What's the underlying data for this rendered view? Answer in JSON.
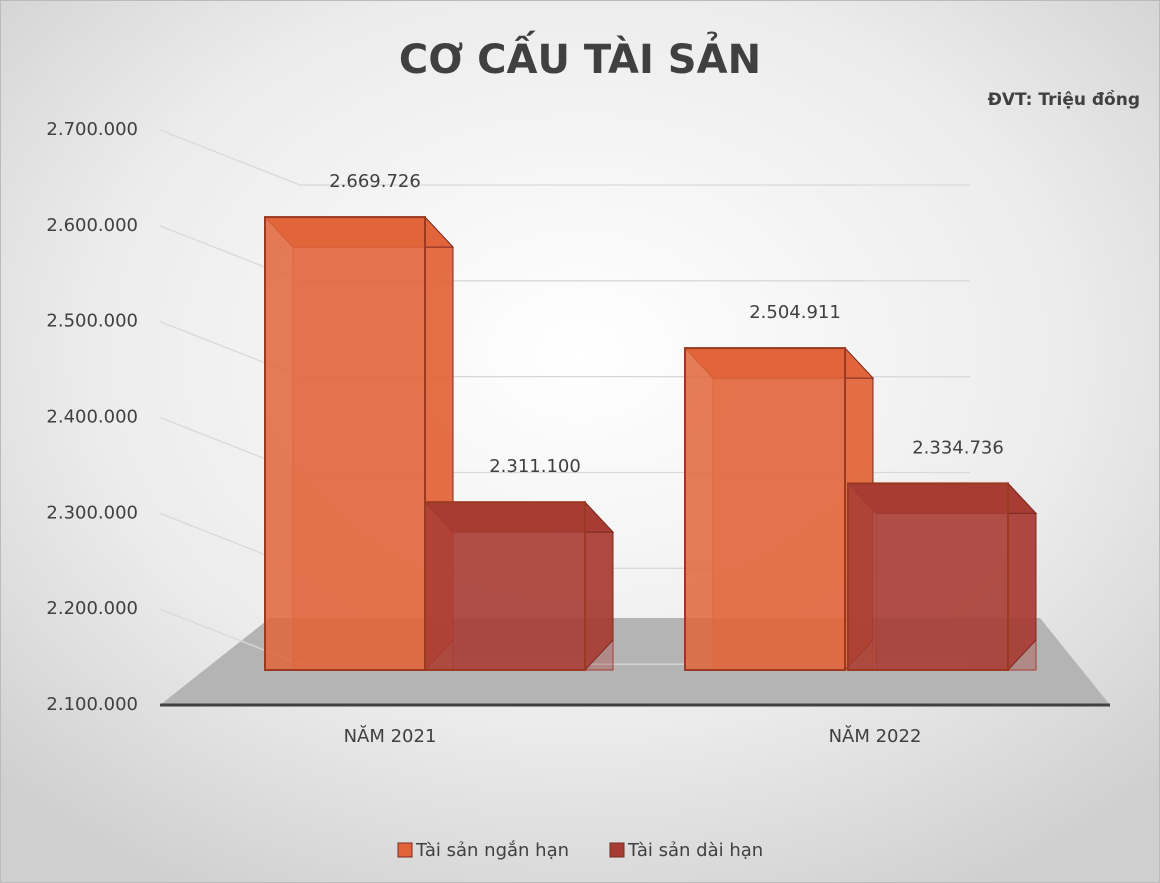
{
  "chart_data": {
    "type": "bar3d",
    "title": "CƠ CẤU TÀI SẢN",
    "annotation": "ĐVT: Triệu đồng",
    "categories": [
      "NĂM 2021",
      "NĂM 2022"
    ],
    "series": [
      {
        "name": "Tài sản ngắn hạn",
        "color": "#e2643a",
        "values": [
          2669726,
          2504911
        ],
        "value_labels": [
          "2.669.726",
          "2.504.911"
        ]
      },
      {
        "name": "Tài sản dài hạn",
        "color": "#a83c34",
        "values": [
          2311100,
          2334736
        ],
        "value_labels": [
          "2.311.100",
          "2.334.736"
        ]
      }
    ],
    "ylim": [
      2100000,
      2700000
    ],
    "yticks": [
      {
        "value": 2100000,
        "label": "2.100.000"
      },
      {
        "value": 2200000,
        "label": "2.200.000"
      },
      {
        "value": 2300000,
        "label": "2.300.000"
      },
      {
        "value": 2400000,
        "label": "2.400.000"
      },
      {
        "value": 2500000,
        "label": "2.500.000"
      },
      {
        "value": 2600000,
        "label": "2.600.000"
      },
      {
        "value": 2700000,
        "label": "2.700.000"
      }
    ],
    "grid": true,
    "legend": "bottom"
  }
}
